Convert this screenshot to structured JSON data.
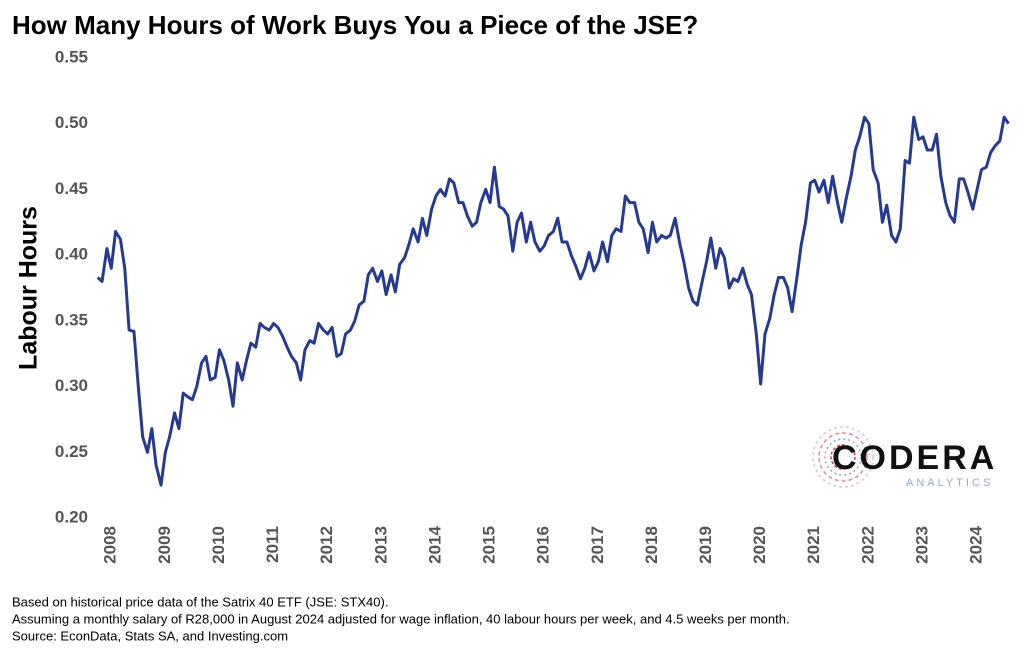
{
  "chart_data": {
    "type": "line",
    "title": "How Many Hours of Work Buys You a Piece of the JSE?",
    "y_label": "Labour Hours",
    "x": [
      2007.75,
      2007.83,
      2007.92,
      2008.0,
      2008.08,
      2008.17,
      2008.25,
      2008.33,
      2008.42,
      2008.5,
      2008.58,
      2008.67,
      2008.75,
      2008.83,
      2008.92,
      2009.0,
      2009.08,
      2009.17,
      2009.25,
      2009.33,
      2009.42,
      2009.5,
      2009.58,
      2009.67,
      2009.75,
      2009.83,
      2009.92,
      2010.0,
      2010.08,
      2010.17,
      2010.25,
      2010.33,
      2010.42,
      2010.5,
      2010.58,
      2010.67,
      2010.75,
      2010.83,
      2010.92,
      2011.0,
      2011.08,
      2011.17,
      2011.25,
      2011.33,
      2011.42,
      2011.5,
      2011.58,
      2011.67,
      2011.75,
      2011.83,
      2011.92,
      2012.0,
      2012.08,
      2012.17,
      2012.25,
      2012.33,
      2012.42,
      2012.5,
      2012.58,
      2012.67,
      2012.75,
      2012.83,
      2012.92,
      2013.0,
      2013.08,
      2013.17,
      2013.25,
      2013.33,
      2013.42,
      2013.5,
      2013.58,
      2013.67,
      2013.75,
      2013.83,
      2013.92,
      2014.0,
      2014.08,
      2014.17,
      2014.25,
      2014.33,
      2014.42,
      2014.5,
      2014.58,
      2014.67,
      2014.75,
      2014.83,
      2014.92,
      2015.0,
      2015.08,
      2015.17,
      2015.25,
      2015.33,
      2015.42,
      2015.5,
      2015.58,
      2015.67,
      2015.75,
      2015.83,
      2015.92,
      2016.0,
      2016.08,
      2016.17,
      2016.25,
      2016.33,
      2016.42,
      2016.5,
      2016.58,
      2016.67,
      2016.75,
      2016.83,
      2016.92,
      2017.0,
      2017.08,
      2017.17,
      2017.25,
      2017.33,
      2017.42,
      2017.5,
      2017.58,
      2017.67,
      2017.75,
      2017.83,
      2017.92,
      2018.0,
      2018.08,
      2018.17,
      2018.25,
      2018.33,
      2018.42,
      2018.5,
      2018.58,
      2018.67,
      2018.75,
      2018.83,
      2018.92,
      2019.0,
      2019.08,
      2019.17,
      2019.25,
      2019.33,
      2019.42,
      2019.5,
      2019.58,
      2019.67,
      2019.75,
      2019.83,
      2019.92,
      2020.0,
      2020.08,
      2020.17,
      2020.25,
      2020.33,
      2020.42,
      2020.5,
      2020.58,
      2020.67,
      2020.75,
      2020.83,
      2020.92,
      2021.0,
      2021.08,
      2021.17,
      2021.25,
      2021.33,
      2021.42,
      2021.5,
      2021.58,
      2021.67,
      2021.75,
      2021.83,
      2021.92,
      2022.0,
      2022.08,
      2022.17,
      2022.25,
      2022.33,
      2022.42,
      2022.5,
      2022.58,
      2022.67,
      2022.75,
      2022.83,
      2022.92,
      2023.0,
      2023.08,
      2023.17,
      2023.25,
      2023.33,
      2023.42,
      2023.5,
      2023.58,
      2023.67,
      2023.75,
      2023.83,
      2023.92,
      2024.0,
      2024.08,
      2024.17,
      2024.25,
      2024.33,
      2024.42,
      2024.5,
      2024.58
    ],
    "series": [
      {
        "color": "#263b8f",
        "values": [
          0.383,
          0.38,
          0.405,
          0.39,
          0.418,
          0.412,
          0.39,
          0.343,
          0.342,
          0.3,
          0.262,
          0.25,
          0.268,
          0.24,
          0.225,
          0.25,
          0.262,
          0.28,
          0.268,
          0.295,
          0.292,
          0.29,
          0.3,
          0.318,
          0.323,
          0.305,
          0.307,
          0.328,
          0.32,
          0.305,
          0.285,
          0.318,
          0.305,
          0.32,
          0.333,
          0.33,
          0.348,
          0.345,
          0.343,
          0.348,
          0.345,
          0.338,
          0.33,
          0.323,
          0.318,
          0.305,
          0.328,
          0.335,
          0.333,
          0.348,
          0.343,
          0.34,
          0.345,
          0.323,
          0.325,
          0.34,
          0.343,
          0.35,
          0.362,
          0.365,
          0.385,
          0.39,
          0.38,
          0.388,
          0.37,
          0.385,
          0.372,
          0.393,
          0.398,
          0.408,
          0.42,
          0.41,
          0.428,
          0.415,
          0.435,
          0.445,
          0.45,
          0.445,
          0.458,
          0.455,
          0.44,
          0.44,
          0.43,
          0.422,
          0.425,
          0.44,
          0.45,
          0.44,
          0.467,
          0.437,
          0.435,
          0.43,
          0.403,
          0.425,
          0.432,
          0.41,
          0.425,
          0.41,
          0.403,
          0.407,
          0.415,
          0.418,
          0.428,
          0.41,
          0.41,
          0.4,
          0.392,
          0.382,
          0.39,
          0.402,
          0.388,
          0.395,
          0.41,
          0.395,
          0.415,
          0.42,
          0.418,
          0.445,
          0.44,
          0.44,
          0.425,
          0.42,
          0.402,
          0.425,
          0.41,
          0.415,
          0.413,
          0.415,
          0.428,
          0.41,
          0.395,
          0.375,
          0.365,
          0.362,
          0.38,
          0.395,
          0.413,
          0.39,
          0.405,
          0.398,
          0.375,
          0.382,
          0.38,
          0.39,
          0.378,
          0.37,
          0.34,
          0.302,
          0.34,
          0.352,
          0.37,
          0.383,
          0.383,
          0.375,
          0.357,
          0.383,
          0.408,
          0.425,
          0.455,
          0.457,
          0.448,
          0.457,
          0.44,
          0.46,
          0.44,
          0.425,
          0.443,
          0.46,
          0.48,
          0.49,
          0.505,
          0.5,
          0.465,
          0.455,
          0.425,
          0.438,
          0.415,
          0.41,
          0.42,
          0.472,
          0.47,
          0.505,
          0.488,
          0.49,
          0.48,
          0.48,
          0.492,
          0.46,
          0.44,
          0.43,
          0.425,
          0.458,
          0.458,
          0.448,
          0.435,
          0.45,
          0.465,
          0.467,
          0.478,
          0.483,
          0.487,
          0.505,
          0.5
        ]
      }
    ],
    "xlim": [
      2007.7,
      2024.7
    ],
    "xticks": [
      2008,
      2009,
      2010,
      2011,
      2012,
      2013,
      2014,
      2015,
      2016,
      2017,
      2018,
      2019,
      2020,
      2021,
      2022,
      2023,
      2024
    ],
    "ylim": [
      0.2,
      0.55
    ],
    "yticks": [
      {
        "value": 0.2,
        "label": "0.20"
      },
      0.25,
      {
        "value": 0.3,
        "label": "0.30"
      },
      0.35,
      {
        "value": 0.4,
        "label": "0.40"
      },
      0.45,
      {
        "value": 0.5,
        "label": "0.50"
      },
      0.55
    ],
    "grid": false
  },
  "notes": [
    "Based on historical price data of the Satrix 40 ETF (JSE: STX40).",
    "Assuming a monthly salary of R28,000 in August 2024 adjusted for wage inflation, 40 labour hours per week, and 4.5 weeks per month.",
    "Source: EconData, Stats SA, and Investing.com"
  ],
  "logo": {
    "name": "CODERA",
    "sub": "ANALYTICS"
  }
}
